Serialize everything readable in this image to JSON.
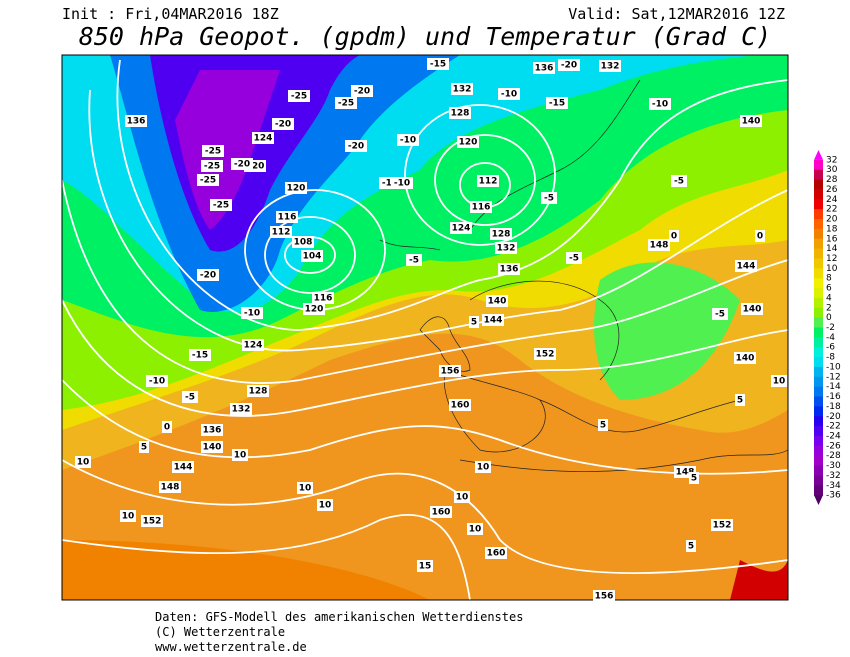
{
  "header": {
    "init": "Init : Fri,04MAR2016 18Z",
    "valid": "Valid: Sat,12MAR2016 12Z",
    "title": "850 hPa Geopot. (gpdm) und Temperatur (Grad C)"
  },
  "colorbar": {
    "ticks": [
      32,
      30,
      28,
      26,
      24,
      22,
      20,
      18,
      16,
      14,
      12,
      10,
      8,
      6,
      4,
      2,
      0,
      -2,
      -4,
      -6,
      -8,
      -10,
      -12,
      -14,
      -16,
      -18,
      -20,
      -22,
      -24,
      -26,
      -28,
      -30,
      -32,
      -34,
      -36
    ],
    "colors": [
      "#ff00ff",
      "#ff00c8",
      "#c80050",
      "#b40000",
      "#d20000",
      "#f00000",
      "#ff3c00",
      "#ff6400",
      "#f08200",
      "#f0a000",
      "#f0b400",
      "#f0c800",
      "#f0dc00",
      "#f0f000",
      "#dcf000",
      "#b4f000",
      "#8cf000",
      "#50f050",
      "#00f064",
      "#00f0a0",
      "#00f0dc",
      "#00dcf0",
      "#00b4f0",
      "#0096f0",
      "#0078f0",
      "#0050f0",
      "#0028f0",
      "#2800f0",
      "#5000f0",
      "#7800f0",
      "#9600dc",
      "#a000c8",
      "#8c00b4",
      "#780096",
      "#640078",
      "#500064"
    ]
  },
  "map": {
    "geopotential_labels": [
      136,
      124,
      120,
      120,
      116,
      112,
      108,
      104,
      116,
      120,
      124,
      128,
      132,
      136,
      140,
      144,
      148,
      152,
      160,
      156,
      160,
      160,
      156,
      152,
      148,
      152,
      144,
      140,
      136,
      132,
      128,
      124,
      116,
      112,
      120,
      128,
      132,
      136,
      132,
      140,
      148,
      144,
      140,
      140
    ],
    "temperature_labels": [
      -25,
      -20,
      -25,
      -25,
      -20,
      -25,
      -25,
      -20,
      -10,
      -15,
      -10,
      -5,
      0,
      5,
      10,
      10,
      10,
      10,
      10,
      10,
      10,
      10,
      15,
      5,
      -5,
      -5,
      -5,
      -5,
      -10,
      -15,
      -10,
      -20,
      -15,
      -10,
      -15,
      -10,
      -20,
      -25,
      -20,
      0,
      0,
      -5,
      5,
      5,
      5,
      5,
      10
    ]
  },
  "footer": {
    "line1": "Daten: GFS-Modell des amerikanischen Wetterdienstes",
    "line2": "(C) Wetterzentrale",
    "line3": "www.wetterzentrale.de"
  }
}
